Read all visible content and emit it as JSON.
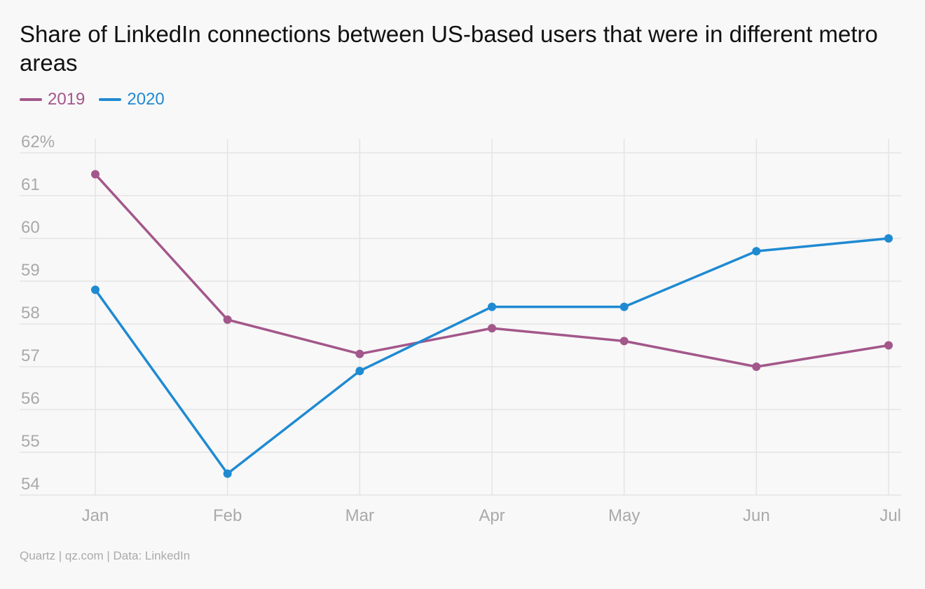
{
  "title": "Share of LinkedIn connections between US-based users that were in different metro areas",
  "source": "Quartz | qz.com | Data: LinkedIn",
  "colors": {
    "series_2019": "#a3578a",
    "series_2020": "#1f8ad2",
    "grid": "#e4e4e4",
    "tick": "#a9a9a9",
    "background": "#f8f8f8"
  },
  "legend_placement": "top-left",
  "chart_data": {
    "type": "line",
    "categories": [
      "Jan",
      "Feb",
      "Mar",
      "Apr",
      "May",
      "Jun",
      "Jul"
    ],
    "series": [
      {
        "name": "2019",
        "values": [
          61.5,
          58.1,
          57.3,
          57.9,
          57.6,
          57.0,
          57.5
        ]
      },
      {
        "name": "2020",
        "values": [
          58.8,
          54.5,
          56.9,
          58.4,
          58.4,
          59.7,
          60.0
        ]
      }
    ],
    "y_ticks": [
      "62%",
      "61",
      "60",
      "59",
      "58",
      "57",
      "56",
      "55",
      "54"
    ],
    "y_tick_values": [
      62,
      61,
      60,
      59,
      58,
      57,
      56,
      55,
      54
    ],
    "ylim": [
      54,
      62
    ],
    "grid": true,
    "xlabel": "",
    "ylabel": ""
  }
}
